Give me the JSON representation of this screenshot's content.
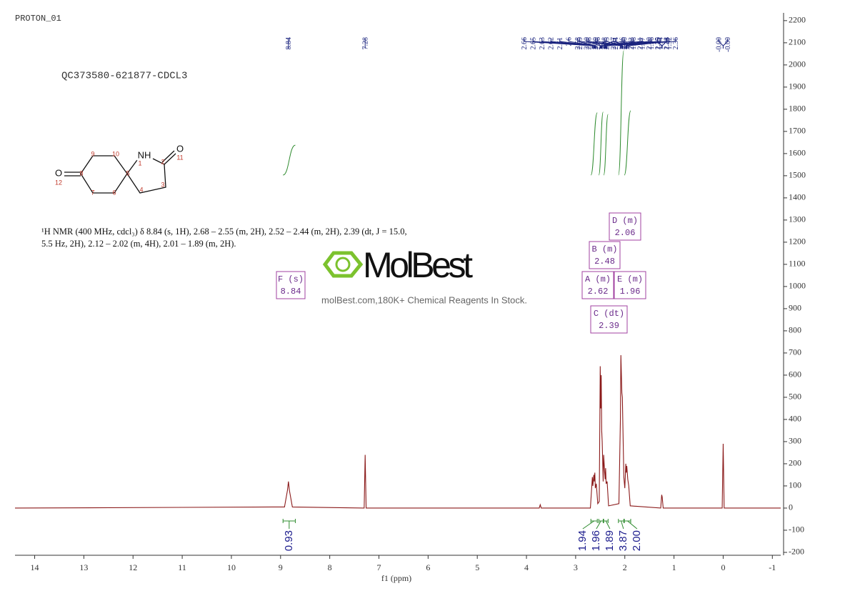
{
  "chart_data": {
    "type": "spectrum",
    "title": "PROTON_01",
    "subtitle": "QC373580-621877-CDCL3",
    "x_label": "f1 (ppm)",
    "xlim": [
      14.4,
      -1.17
    ],
    "ylim": [
      -213,
      2235
    ],
    "xticks": [
      14,
      13,
      12,
      11,
      10,
      9,
      8,
      7,
      6,
      5,
      4,
      3,
      2,
      1,
      0,
      -1
    ],
    "yticks": [
      2200,
      2100,
      2000,
      1900,
      1800,
      1700,
      1600,
      1500,
      1400,
      1300,
      1200,
      1100,
      1000,
      900,
      800,
      700,
      600,
      500,
      400,
      300,
      200,
      100,
      0,
      -100,
      -200
    ],
    "x": [
      14.4,
      8.92,
      8.86,
      8.84,
      8.82,
      8.76,
      7.3,
      7.28,
      7.26,
      3.74,
      3.72,
      3.7,
      2.7,
      2.66,
      2.65,
      2.63,
      2.62,
      2.61,
      2.6,
      2.58,
      2.55,
      2.52,
      2.5,
      2.49,
      2.48,
      2.47,
      2.46,
      2.44,
      2.43,
      2.41,
      2.4,
      2.39,
      2.38,
      2.36,
      2.33,
      2.12,
      2.09,
      2.08,
      2.06,
      2.05,
      2.04,
      2.02,
      2.0,
      1.98,
      1.97,
      1.96,
      1.94,
      1.92,
      1.89,
      1.27,
      1.25,
      1.24,
      1.22,
      0.02,
      0.0,
      -0.02,
      -1.17
    ],
    "series": [
      {
        "color": "#8b1a1a",
        "values": [
          0,
          5,
          80,
          120,
          80,
          5,
          0,
          240,
          0,
          0,
          15,
          0,
          0,
          140,
          100,
          150,
          120,
          160,
          90,
          110,
          20,
          30,
          640,
          450,
          600,
          350,
          300,
          120,
          240,
          160,
          130,
          180,
          110,
          120,
          10,
          20,
          400,
          690,
          520,
          500,
          380,
          140,
          90,
          200,
          160,
          190,
          130,
          100,
          10,
          0,
          60,
          50,
          0,
          0,
          290,
          0,
          0
        ]
      }
    ],
    "peak_picks": [
      8.84,
      7.28,
      2.66,
      2.65,
      2.63,
      2.62,
      2.61,
      2.6,
      2.58,
      {
        "value": 2.5,
        "label": "2.50"
      },
      2.49,
      2.48,
      2.47,
      2.46,
      2.43,
      2.41,
      {
        "value": 2.4,
        "label": "2.40"
      },
      2.39,
      2.38,
      2.36,
      2.09,
      2.08,
      2.06,
      2.05,
      2.04,
      {
        "value": 2.0,
        "label": "2.00"
      },
      1.98,
      1.97,
      1.96,
      1.94,
      1.92,
      1.25,
      1.24,
      {
        "value": 0,
        "label": "-0.00"
      },
      {
        "value": 0,
        "label": "-0.00"
      }
    ],
    "peak_color": "#1a237e",
    "integrals": {
      "values": [
        0.93,
        1.94,
        1.96,
        1.89,
        3.87,
        2
      ],
      "value_labels": [
        "0.93",
        "1.94",
        "1.96",
        "1.89",
        "3.87",
        "2.00"
      ],
      "ranges": [
        [
          8.95,
          8.7
        ],
        [
          2.69,
          2.56
        ],
        [
          2.53,
          2.44
        ],
        [
          2.43,
          2.34
        ],
        [
          2.13,
          2.02
        ],
        [
          2.01,
          1.88
        ]
      ],
      "color": "#2e8b2e",
      "label_color": "#1a1a8c"
    },
    "multiplets": [
      {
        "name": "F (s)",
        "shift": 8.84
      },
      {
        "name": "B (m)",
        "shift": 2.48
      },
      {
        "name": "D (m)",
        "shift": 2.06
      },
      {
        "name": "A (m)",
        "shift": 2.62
      },
      {
        "name": "E (m)",
        "shift": 1.96
      },
      {
        "name": "C (dt)",
        "shift": 2.39
      }
    ],
    "nmr_text": [
      "¹H NMR (400 MHz, cdcl₃) δ 8.84 (s, 1H), 2.68 – 2.55 (m, 2H), 2.52 – 2.44 (m, 2H), 2.39 (dt, J = 15.0,",
      "5.5 Hz, 2H), 2.12 – 2.02 (m, 4H), 2.01 – 1.89 (m, 2H)."
    ],
    "structure_labels": [
      "NH",
      "1",
      "2",
      "O",
      "11",
      "3",
      "4",
      "5",
      "10",
      "9",
      "8",
      "O",
      "12",
      "7",
      "6"
    ],
    "watermark": {
      "brand": "MolBest",
      "tagline": "molBest.com,180K+ Chemical Reagents In Stock."
    }
  }
}
